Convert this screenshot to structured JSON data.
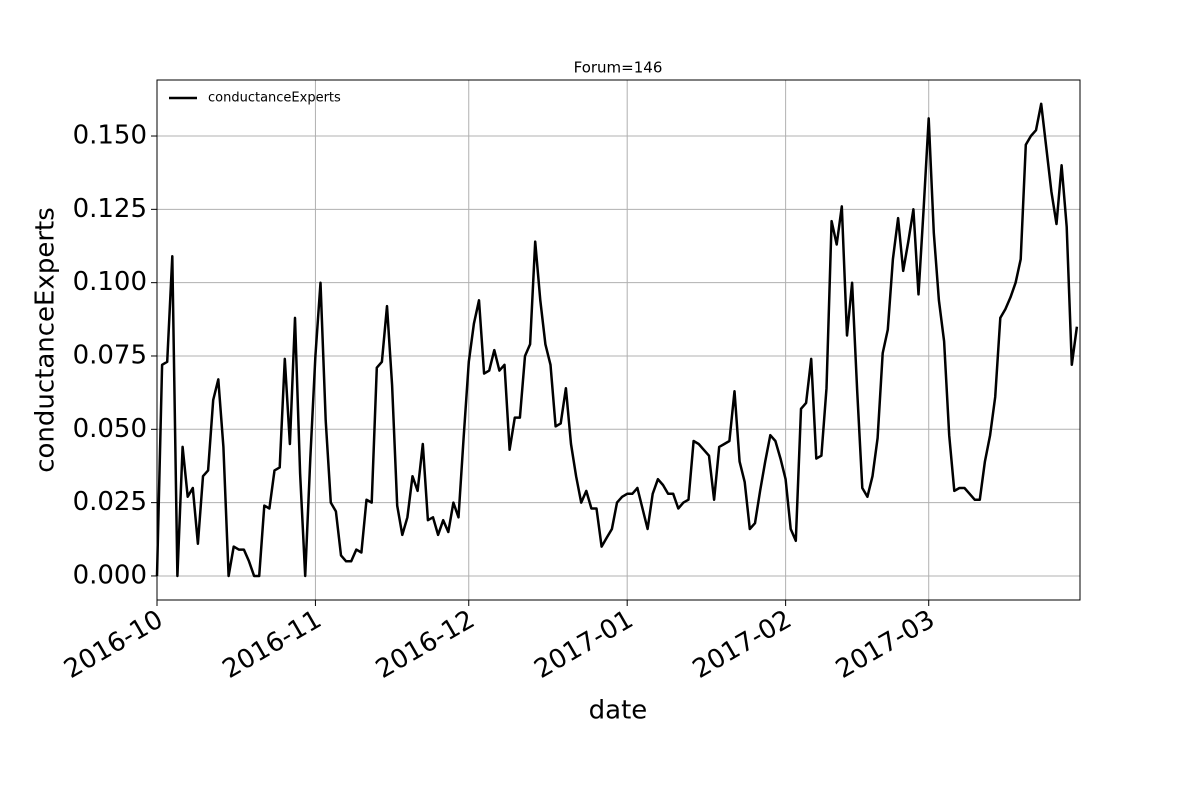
{
  "chart_data": {
    "type": "line",
    "title": "Forum=146",
    "x_label": "date",
    "y_label": "conductanceExperts",
    "categories": [
      "2016-10",
      null,
      null,
      null,
      null,
      null,
      null,
      null,
      null,
      null,
      null,
      null,
      null,
      null,
      null,
      null,
      null,
      null,
      null,
      null,
      null,
      null,
      null,
      null,
      null,
      null,
      null,
      null,
      null,
      null,
      null,
      "2016-11",
      null,
      null,
      null,
      null,
      null,
      null,
      null,
      null,
      null,
      null,
      null,
      null,
      null,
      null,
      null,
      null,
      null,
      null,
      null,
      null,
      null,
      null,
      null,
      null,
      null,
      null,
      null,
      null,
      null,
      "2016-12",
      null,
      null,
      null,
      null,
      null,
      null,
      null,
      null,
      null,
      null,
      null,
      null,
      null,
      null,
      null,
      null,
      null,
      null,
      null,
      null,
      null,
      null,
      null,
      null,
      null,
      null,
      null,
      null,
      null,
      null,
      "2017-01",
      null,
      null,
      null,
      null,
      null,
      null,
      null,
      null,
      null,
      null,
      null,
      null,
      null,
      null,
      null,
      null,
      null,
      null,
      null,
      null,
      null,
      null,
      null,
      null,
      null,
      null,
      null,
      null,
      null,
      null,
      "2017-02",
      null,
      null,
      null,
      null,
      null,
      null,
      null,
      null,
      null,
      null,
      null,
      null,
      null,
      null,
      null,
      null,
      null,
      null,
      null,
      null,
      null,
      null,
      null,
      null,
      null,
      null,
      null,
      "2017-03",
      null,
      null,
      null,
      null,
      null,
      null,
      null,
      null,
      null,
      null,
      null,
      null,
      null,
      null,
      null,
      null,
      null,
      null,
      null,
      null,
      null,
      null,
      null,
      null,
      null,
      null,
      null,
      null,
      null
    ],
    "series": [
      {
        "name": "conductanceExperts",
        "color": "#000000",
        "values": [
          0.0,
          0.072,
          0.073,
          0.109,
          0.0,
          0.044,
          0.027,
          0.03,
          0.011,
          0.034,
          0.036,
          0.06,
          0.067,
          0.044,
          0.0,
          0.01,
          0.009,
          0.009,
          0.005,
          0.0,
          0.0,
          0.024,
          0.023,
          0.036,
          0.037,
          0.074,
          0.045,
          0.088,
          0.035,
          0.0,
          0.04,
          0.075,
          0.1,
          0.053,
          0.025,
          0.022,
          0.007,
          0.005,
          0.005,
          0.009,
          0.008,
          0.026,
          0.025,
          0.071,
          0.073,
          0.092,
          0.065,
          0.024,
          0.014,
          0.02,
          0.034,
          0.029,
          0.045,
          0.019,
          0.02,
          0.014,
          0.019,
          0.015,
          0.025,
          0.02,
          0.047,
          0.073,
          0.086,
          0.094,
          0.069,
          0.07,
          0.077,
          0.07,
          0.072,
          0.043,
          0.054,
          0.054,
          0.075,
          0.079,
          0.114,
          0.094,
          0.079,
          0.072,
          0.051,
          0.052,
          0.064,
          0.045,
          0.034,
          0.025,
          0.029,
          0.023,
          0.023,
          0.01,
          0.013,
          0.016,
          0.025,
          0.027,
          0.028,
          0.028,
          0.03,
          0.023,
          0.016,
          0.028,
          0.033,
          0.031,
          0.028,
          0.028,
          0.023,
          0.025,
          0.026,
          0.046,
          0.045,
          0.043,
          0.041,
          0.026,
          0.044,
          0.045,
          0.046,
          0.063,
          0.039,
          0.032,
          0.016,
          0.018,
          0.029,
          0.039,
          0.048,
          0.046,
          0.04,
          0.033,
          0.016,
          0.012,
          0.057,
          0.059,
          0.074,
          0.04,
          0.041,
          0.064,
          0.121,
          0.113,
          0.126,
          0.082,
          0.1,
          0.063,
          0.03,
          0.027,
          0.034,
          0.047,
          0.076,
          0.084,
          0.108,
          0.122,
          0.104,
          0.114,
          0.125,
          0.096,
          0.125,
          0.156,
          0.117,
          0.094,
          0.08,
          0.048,
          0.029,
          0.03,
          0.03,
          0.028,
          0.026,
          0.026,
          0.039,
          0.048,
          0.061,
          0.088,
          0.091,
          0.095,
          0.1,
          0.108,
          0.147,
          0.15,
          0.152,
          0.161,
          0.146,
          0.131,
          0.12,
          0.14,
          0.119,
          0.072,
          0.085
        ]
      }
    ],
    "ylim": [
      -0.0082,
      0.1691
    ],
    "yticks": [
      {
        "value": 0,
        "label": "0.000"
      },
      {
        "value": 0.025,
        "label": "0.025"
      },
      {
        "value": 0.05,
        "label": "0.050"
      },
      {
        "value": 0.075,
        "label": "0.075"
      },
      {
        "value": 0.1,
        "label": "0.100"
      },
      {
        "value": 0.125,
        "label": "0.125"
      },
      {
        "value": 0.15,
        "label": "0.150"
      }
    ],
    "grid": true,
    "legend": "upper left"
  }
}
